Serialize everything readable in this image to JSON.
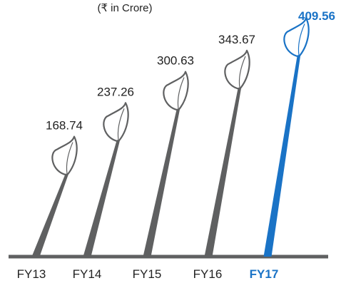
{
  "chart_data": {
    "type": "bar",
    "subtitle": "(₹ in Crore)",
    "categories": [
      "FY13",
      "FY14",
      "FY15",
      "FY16",
      "FY17"
    ],
    "values": [
      168.74,
      237.26,
      300.63,
      343.67,
      409.56
    ],
    "value_labels": [
      "168.74",
      "237.26",
      "300.63",
      "343.67",
      "409.56"
    ],
    "highlight_index": 4,
    "colors": {
      "stem": "#5f6061",
      "highlight": "#1a73c6",
      "baseline": "#5f6061",
      "text": "#222222"
    },
    "style": "sprouting stems with leaf tops",
    "grid": false,
    "legend": "none"
  }
}
